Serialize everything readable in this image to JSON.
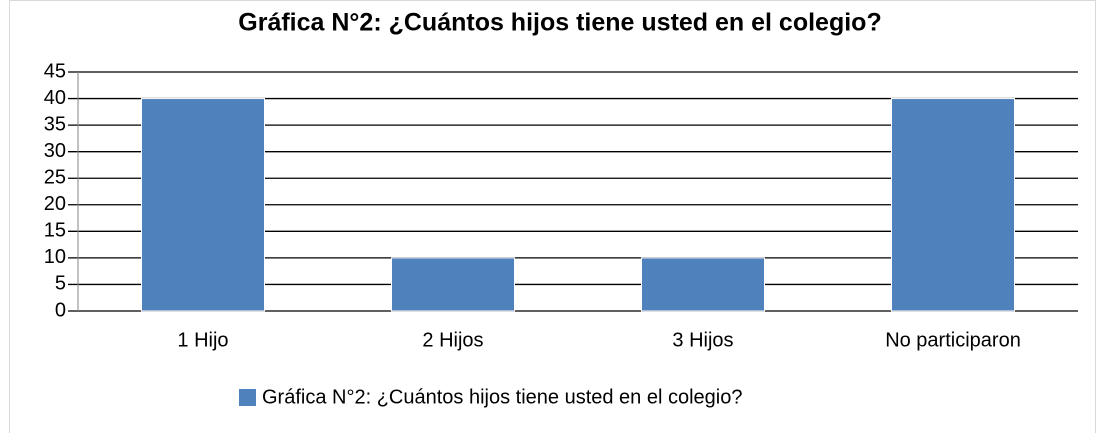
{
  "chart_data": {
    "type": "bar",
    "title": "Gráfica N°2: ¿Cuántos hijos tiene usted en el colegio?",
    "categories": [
      "1 Hijo",
      "2 Hijos",
      "3 Hijos",
      "No participaron"
    ],
    "series": [
      {
        "name": "Gráfica N°2: ¿Cuántos hijos tiene usted en el colegio?",
        "color": "#4f81bd",
        "values": [
          40,
          10,
          10,
          40
        ]
      }
    ],
    "ylim": [
      0,
      45
    ],
    "yticks": [
      0,
      5,
      10,
      15,
      20,
      25,
      30,
      35,
      40,
      45
    ],
    "grid": true,
    "legend": "bottom"
  }
}
